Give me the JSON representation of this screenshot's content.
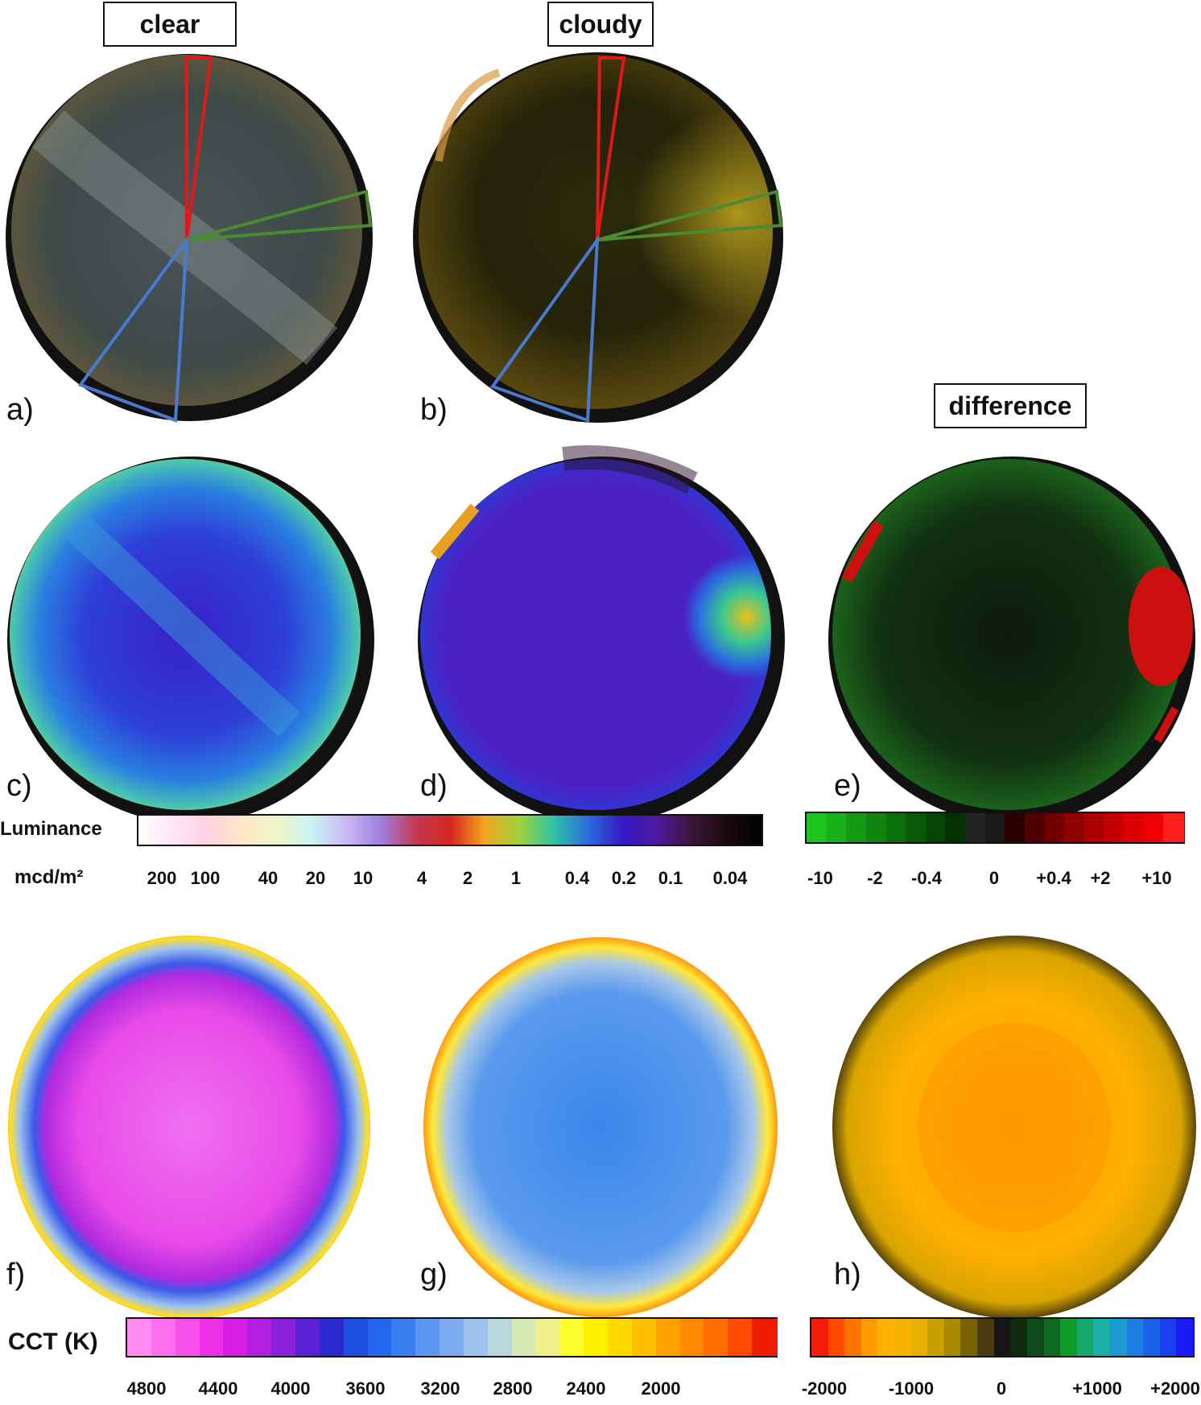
{
  "headers": {
    "clear": "clear",
    "cloudy": "cloudy",
    "difference": "difference"
  },
  "panels": [
    "a)",
    "b)",
    "c)",
    "d)",
    "e)",
    "f)",
    "g)",
    "h)"
  ],
  "luminance_scale": {
    "title": "Luminance",
    "unit": "mcd/m²",
    "ticks": [
      "200",
      "100",
      "40",
      "20",
      "10",
      "4",
      "2",
      "1",
      "0.4",
      "0.2",
      "0.1",
      "0.04"
    ],
    "colors": [
      "#ffffff",
      "#ffe6f5",
      "#ffd1e2",
      "#ffe8c6",
      "#eef6c8",
      "#c8f4f4",
      "#c9b9f4",
      "#a07fe0",
      "#c23a55",
      "#d6241f",
      "#f2a51d",
      "#9fd23a",
      "#2ec3a6",
      "#2b6bde",
      "#3418c5",
      "#4e1a9d",
      "#3b1535",
      "#1a0a0e",
      "#000000"
    ],
    "color_stops": [
      "#ffffff",
      "#ffe6f5",
      "#ffd1e2",
      "#ffe8c6",
      "#eef6c8",
      "#c8f4f4",
      "#c9b9f4",
      "#a07fe0",
      "#c23a55",
      "#d6241f",
      "#f2a51d",
      "#9fd23a",
      "#2ec3a6",
      "#2b6bde",
      "#3418c5",
      "#4e1a9d",
      "#3b1535",
      "#1a0a0e",
      "#000000"
    ]
  },
  "difference_scale": {
    "ticks": [
      "-10",
      "-2",
      "-0.4",
      "0",
      "+0.4",
      "+2",
      "+10"
    ],
    "colors": [
      "#1ec41e",
      "#19b019",
      "#149a14",
      "#0f850f",
      "#0b6f0b",
      "#085a08",
      "#064506",
      "#043004",
      "#222222",
      "#1a1a1a",
      "#2a0000",
      "#500000",
      "#700000",
      "#900000",
      "#aa0000",
      "#c40000",
      "#dc0000",
      "#f00000",
      "#ff1e1e"
    ]
  },
  "cct_scale": {
    "title": "CCT (K)",
    "ticks": [
      "4800",
      "4400",
      "4000",
      "3600",
      "3200",
      "2800",
      "2400",
      "2000"
    ],
    "colors": [
      "#ff8cf0",
      "#ff70ee",
      "#f850ea",
      "#ec30e6",
      "#d81ee4",
      "#b11fe0",
      "#8a22dc",
      "#5a22d4",
      "#2a2ad0",
      "#1f4fe0",
      "#2468ee",
      "#3a7ff2",
      "#5a96f2",
      "#7cacf0",
      "#9ec2ee",
      "#b8d8dc",
      "#d6e8b4",
      "#eef08a",
      "#ffff30",
      "#fff000",
      "#ffd800",
      "#ffbe00",
      "#ffa200",
      "#ff8a00",
      "#ff6e00",
      "#ff4a00",
      "#ee1c00"
    ],
    "diff_ticks": [
      "-2000",
      "-1000",
      "0",
      "+1000",
      "+2000"
    ],
    "diff_colors": [
      "#f21c0a",
      "#ff4a00",
      "#ff7400",
      "#ff9a00",
      "#ffb000",
      "#f6b400",
      "#e8ae00",
      "#c8a000",
      "#a88a00",
      "#7a6200",
      "#4a3c10",
      "#161616",
      "#0e2a0e",
      "#0e4a1a",
      "#0e6a1e",
      "#109a2a",
      "#18a86e",
      "#1ab0a8",
      "#1a9ad0",
      "#1a80e0",
      "#1a60e8",
      "#1a3ef0",
      "#1a1af8"
    ]
  }
}
